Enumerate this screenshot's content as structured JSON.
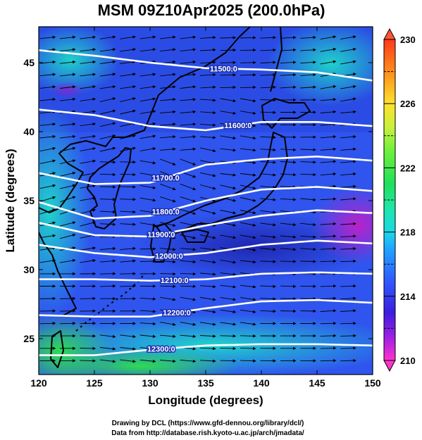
{
  "chart_data": {
    "type": "heatmap",
    "title": "MSM 09Z10Apr2025 (200.0hPa)",
    "xlabel": "Longitude (degrees)",
    "ylabel": "Latitude  (degrees)",
    "xlim": [
      120,
      150
    ],
    "ylim": [
      22.4,
      47.6
    ],
    "x_ticks": [
      120,
      125,
      130,
      135,
      140,
      145,
      150
    ],
    "y_ticks": [
      25,
      30,
      35,
      40,
      45
    ],
    "colorbar": {
      "min": 210,
      "max": 230,
      "tick_labels": [
        230,
        226,
        222,
        218,
        214,
        210
      ],
      "dash_levels": [
        212,
        216,
        220,
        224,
        228
      ],
      "stops": [
        {
          "value": 210,
          "color": "#ff33cc"
        },
        {
          "value": 211.5,
          "color": "#9c1fe6"
        },
        {
          "value": 213,
          "color": "#3a1ee0"
        },
        {
          "value": 215,
          "color": "#2f5cff"
        },
        {
          "value": 217,
          "color": "#20a6ff"
        },
        {
          "value": 218,
          "color": "#1ad9e6"
        },
        {
          "value": 219.5,
          "color": "#1fe6a8"
        },
        {
          "value": 221,
          "color": "#1fe05a"
        },
        {
          "value": 223,
          "color": "#6cf03c"
        },
        {
          "value": 224.5,
          "color": "#c8f03c"
        },
        {
          "value": 226,
          "color": "#ffe12e"
        },
        {
          "value": 228,
          "color": "#ff8c1a"
        },
        {
          "value": 230,
          "color": "#ff3a1a"
        }
      ]
    },
    "contours": [
      {
        "label": "11500.0",
        "value": 11500,
        "lat_at": [
          [
            120,
            45.9
          ],
          [
            125,
            45.5
          ],
          [
            130,
            45.0
          ],
          [
            135,
            44.6
          ],
          [
            140,
            44.5
          ],
          [
            145,
            44.3
          ],
          [
            150,
            43.7
          ]
        ],
        "label_lon": 136.6
      },
      {
        "label": "11600.0",
        "value": 11600,
        "lat_at": [
          [
            120,
            41.6
          ],
          [
            125,
            41.2
          ],
          [
            130,
            40.4
          ],
          [
            135,
            40.1
          ],
          [
            140,
            40.7
          ],
          [
            145,
            40.7
          ],
          [
            150,
            40.4
          ]
        ],
        "label_lon": 137.9
      },
      {
        "label": "11700.0",
        "value": 11700,
        "lat_at": [
          [
            120,
            37.0
          ],
          [
            125,
            36.2
          ],
          [
            130,
            36.3
          ],
          [
            135,
            37.6
          ],
          [
            140,
            38.0
          ],
          [
            145,
            38.2
          ],
          [
            150,
            37.9
          ]
        ],
        "label_lon": 131.4
      },
      {
        "label": "11800.0",
        "value": 11800,
        "lat_at": [
          [
            120,
            34.9
          ],
          [
            125,
            33.7
          ],
          [
            130,
            33.9
          ],
          [
            135,
            35.0
          ],
          [
            140,
            35.8
          ],
          [
            145,
            36.0
          ],
          [
            150,
            35.7
          ]
        ],
        "label_lon": 131.4
      },
      {
        "label": "11900.0",
        "value": 11900,
        "lat_at": [
          [
            120,
            33.4
          ],
          [
            125,
            32.5
          ],
          [
            130,
            32.4
          ],
          [
            135,
            33.2
          ],
          [
            140,
            33.9
          ],
          [
            145,
            34.3
          ],
          [
            150,
            34.1
          ]
        ],
        "label_lon": 131.0
      },
      {
        "label": "12000.0",
        "value": 12000,
        "lat_at": [
          [
            120,
            31.8
          ],
          [
            125,
            31.2
          ],
          [
            130,
            30.9
          ],
          [
            135,
            31.2
          ],
          [
            140,
            31.8
          ],
          [
            145,
            32.1
          ],
          [
            150,
            31.9
          ]
        ],
        "label_lon": 131.7
      },
      {
        "label": "12100.0",
        "value": 12100,
        "lat_at": [
          [
            120,
            29.3
          ],
          [
            125,
            29.3
          ],
          [
            130,
            29.2
          ],
          [
            135,
            29.3
          ],
          [
            140,
            29.7
          ],
          [
            145,
            29.8
          ],
          [
            150,
            29.7
          ]
        ],
        "label_lon": 132.2
      },
      {
        "label": "12200.0",
        "value": 12200,
        "lat_at": [
          [
            120,
            26.7
          ],
          [
            125,
            26.6
          ],
          [
            130,
            26.6
          ],
          [
            135,
            27.2
          ],
          [
            140,
            27.7
          ],
          [
            145,
            27.8
          ],
          [
            150,
            27.6
          ]
        ],
        "label_lon": 132.4
      },
      {
        "label": "12300.0",
        "value": 12300,
        "lat_at": [
          [
            120,
            23.8
          ],
          [
            125,
            23.8
          ],
          [
            130,
            24.2
          ],
          [
            135,
            24.5
          ],
          [
            140,
            24.6
          ],
          [
            145,
            24.6
          ],
          [
            150,
            24.5
          ]
        ],
        "label_lon": 131.0
      }
    ]
  },
  "credits": {
    "line1": "Drawing by DCL (https://www.gfd-dennou.org/library/dcl/)",
    "line2": "Data from http://database.rish.kyoto-u.ac.jp/arch/jmadata/"
  }
}
